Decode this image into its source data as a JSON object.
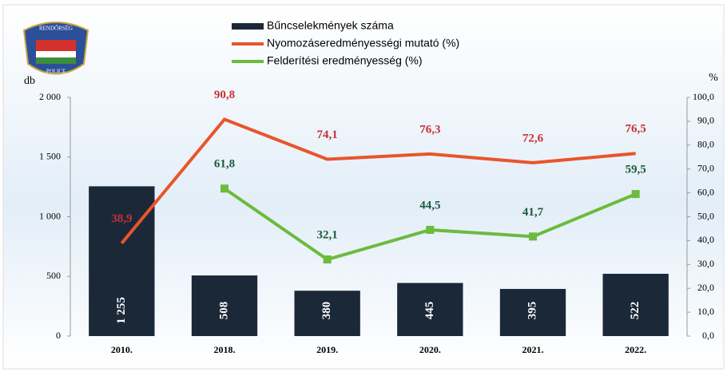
{
  "logo": [
    "RENDŐRSÉG",
    "POLICE"
  ],
  "chart_data": {
    "type": "bar-line",
    "categories": [
      "2010.",
      "2018.",
      "2019.",
      "2020.",
      "2021.",
      "2022."
    ],
    "y_label": "db",
    "y2_label": "%",
    "ylim": [
      0,
      2000
    ],
    "yticks": [
      0,
      500,
      {
        "value": 1000,
        "label": "1 000"
      },
      {
        "value": 1500,
        "label": "1 500"
      },
      {
        "value": 2000,
        "label": "2 000"
      }
    ],
    "y2lim": [
      0,
      100
    ],
    "y2ticks": [
      {
        "value": 0,
        "label": "0,0"
      },
      {
        "value": 10,
        "label": "10,0"
      },
      {
        "value": 20,
        "label": "20,0"
      },
      {
        "value": 30,
        "label": "30,0"
      },
      {
        "value": 40,
        "label": "40,0"
      },
      {
        "value": 50,
        "label": "50,0"
      },
      {
        "value": 60,
        "label": "60,0"
      },
      {
        "value": 70,
        "label": "70,0"
      },
      {
        "value": 80,
        "label": "80,0"
      },
      {
        "value": 90,
        "label": "90,0"
      },
      {
        "value": 100,
        "label": "100,0"
      }
    ],
    "series": [
      {
        "name": "Bűncselekmények száma",
        "type": "bar",
        "color": "#1b2838",
        "values": [
          1255,
          508,
          380,
          445,
          395,
          522
        ],
        "value_labels": [
          "1 255",
          "508",
          "380",
          "445",
          "395",
          "522"
        ]
      },
      {
        "name": "Nyomozáseredményességi mutató (%)",
        "type": "line",
        "axis": "y2",
        "color": "#e8552b",
        "label_color": "#c8303a",
        "values": [
          38.9,
          90.8,
          74.1,
          76.3,
          72.6,
          76.5
        ],
        "value_labels": [
          "38,9",
          "90,8",
          "74,1",
          "76,3",
          "72,6",
          "76,5"
        ]
      },
      {
        "name": "Felderítési eredményesség (%)",
        "type": "line",
        "axis": "y2",
        "color": "#6cbb3c",
        "label_color": "#1d5a3c",
        "values": [
          null,
          61.8,
          32.1,
          44.5,
          41.7,
          59.5
        ],
        "value_labels": [
          null,
          "61,8",
          "32,1",
          "44,5",
          "41,7",
          "59,5"
        ]
      }
    ]
  }
}
